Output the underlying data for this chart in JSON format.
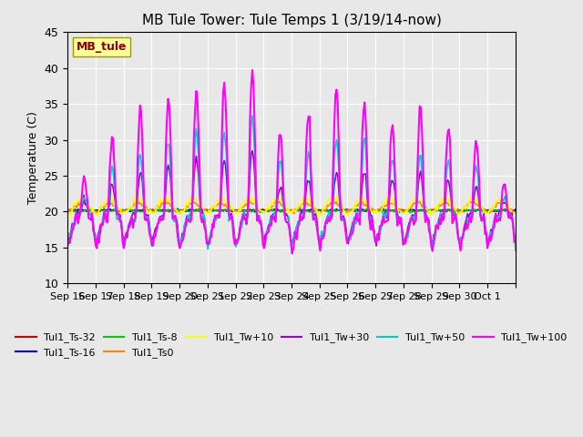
{
  "title": "MB Tule Tower: Tule Temps 1 (3/19/14-now)",
  "ylabel": "Temperature (C)",
  "ylim": [
    10,
    45
  ],
  "yticks": [
    10,
    15,
    20,
    25,
    30,
    35,
    40,
    45
  ],
  "background_color": "#e8e8e8",
  "series": [
    {
      "label": "Tul1_Ts-32",
      "color": "#cc0000"
    },
    {
      "label": "Tul1_Ts-16",
      "color": "#0000cc"
    },
    {
      "label": "Tul1_Ts-8",
      "color": "#00cc00"
    },
    {
      "label": "Tul1_Ts0",
      "color": "#ff8800"
    },
    {
      "label": "Tul1_Tw+10",
      "color": "#ffff00"
    },
    {
      "label": "Tul1_Tw+30",
      "color": "#9900cc"
    },
    {
      "label": "Tul1_Tw+50",
      "color": "#00cccc"
    },
    {
      "label": "Tul1_Tw+100",
      "color": "#ff00ff"
    }
  ],
  "station_label": "MB_tule",
  "station_label_color": "#880000",
  "station_box_color": "#ffff99",
  "x_tick_positions": [
    0,
    1,
    2,
    3,
    4,
    5,
    6,
    7,
    8,
    9,
    10,
    11,
    12,
    13,
    14,
    15,
    16
  ],
  "x_tick_labels": [
    "Sep 16",
    "Sep 17",
    "Sep 18",
    "Sep 19",
    "Sep 20",
    "Sep 21",
    "Sep 22",
    "Sep 23",
    "Sep 24",
    "Sep 25",
    "Sep 26",
    "Sep 27",
    "Sep 28",
    "Sep 29",
    "Sep 30",
    "Oct 1",
    ""
  ],
  "n_days": 16,
  "pts_per_day": 24
}
